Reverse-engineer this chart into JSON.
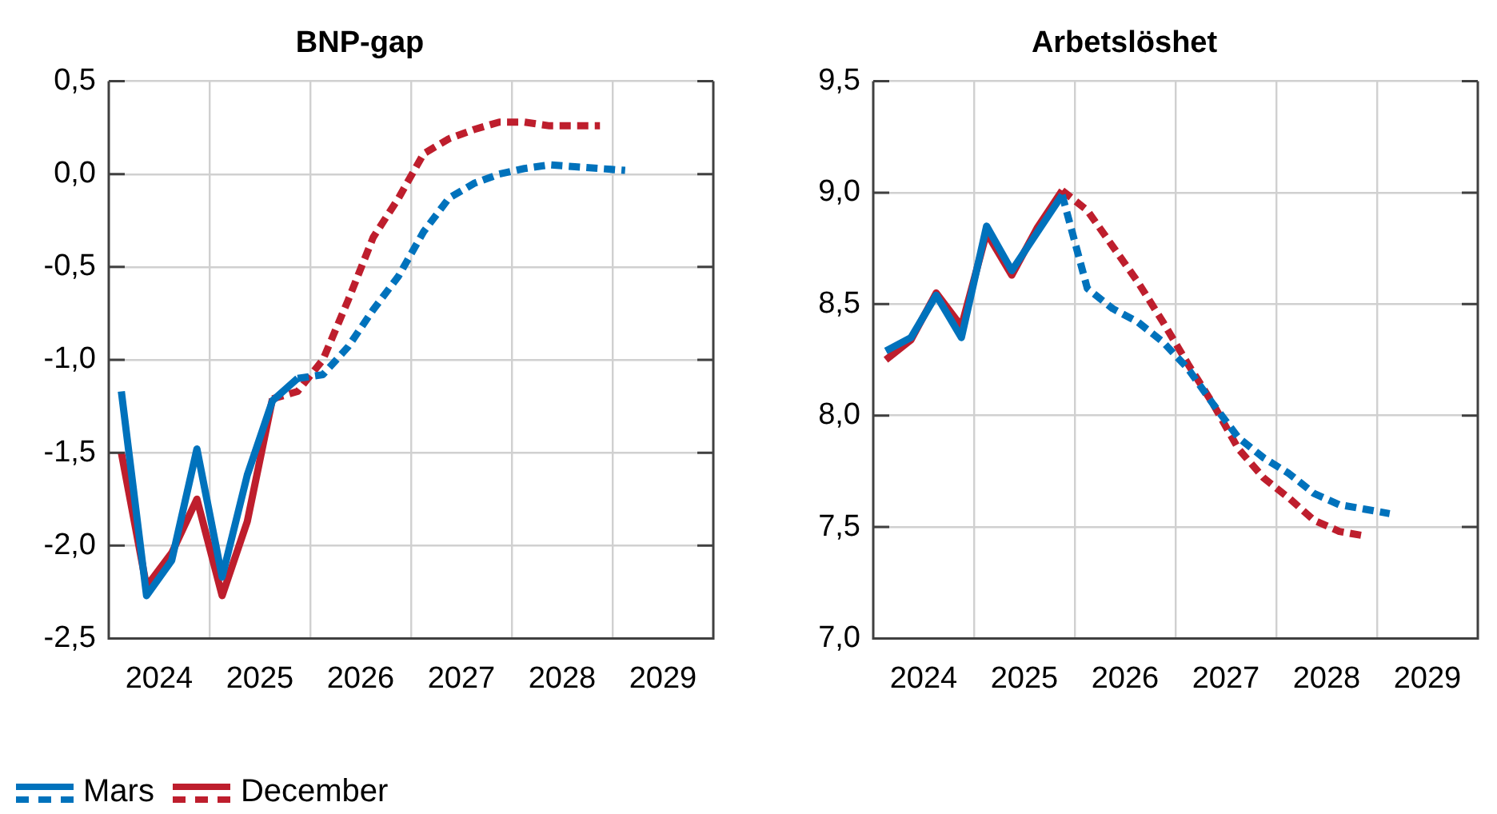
{
  "chart_data": [
    {
      "type": "line",
      "title": "BNP-gap",
      "xlim": [
        2024,
        2030
      ],
      "xticks": [
        {
          "value": 2024.5,
          "label": "2024"
        },
        {
          "value": 2025,
          "label": null
        },
        {
          "value": 2025.5,
          "label": "2025"
        },
        {
          "value": 2026,
          "label": null
        },
        {
          "value": 2026.5,
          "label": "2026"
        },
        {
          "value": 2027,
          "label": null
        },
        {
          "value": 2027.5,
          "label": "2027"
        },
        {
          "value": 2028,
          "label": null
        },
        {
          "value": 2028.5,
          "label": "2028"
        },
        {
          "value": 2029,
          "label": null
        },
        {
          "value": 2029.5,
          "label": "2029"
        }
      ],
      "ylim": [
        -2.5,
        0.5
      ],
      "yticks": [
        {
          "value": -2.5,
          "label": "-2,5"
        },
        {
          "value": -2,
          "label": "-2,0"
        },
        {
          "value": -1.5,
          "label": "-1,5"
        },
        {
          "value": -1,
          "label": "-1,0"
        },
        {
          "value": -0.5,
          "label": "-0,5"
        },
        {
          "value": 0,
          "label": "0,0"
        },
        {
          "value": 0.5,
          "label": "0,5"
        }
      ],
      "grid": true,
      "legend": "bottom left",
      "marker": "none",
      "series": [
        {
          "name": "Mars",
          "color": "#0072bc",
          "line_style": "solid",
          "x": [
            2024.125,
            2024.375,
            2024.625,
            2024.875,
            2025.125,
            2025.375,
            2025.625,
            2025.875
          ],
          "values": [
            -1.17,
            -2.27,
            -2.08,
            -1.48,
            -2.17,
            -1.62,
            -1.22,
            -1.1
          ]
        },
        {
          "color": "#0072bc",
          "line_style": "dashed",
          "x": [
            2025.875,
            2026.125,
            2026.375,
            2026.625,
            2026.875,
            2027.125,
            2027.375,
            2027.625,
            2027.875,
            2028.125,
            2028.375,
            2028.625,
            2028.875,
            2029.125
          ],
          "values": [
            -1.1,
            -1.08,
            -0.93,
            -0.73,
            -0.55,
            -0.31,
            -0.13,
            -0.05,
            0,
            0.03,
            0.05,
            0.04,
            0.03,
            0.02
          ]
        },
        {
          "name": "December",
          "color": "#be1e2d",
          "line_style": "solid",
          "x": [
            2024.125,
            2024.375,
            2024.625,
            2024.875,
            2025.125,
            2025.375,
            2025.625
          ],
          "values": [
            -1.5,
            -2.22,
            -2.04,
            -1.75,
            -2.27,
            -1.87,
            -1.21
          ]
        },
        {
          "color": "#be1e2d",
          "line_style": "dashed",
          "x": [
            2025.625,
            2025.875,
            2026.125,
            2026.375,
            2026.625,
            2026.875,
            2027.125,
            2027.375,
            2027.625,
            2027.875,
            2028.125,
            2028.375,
            2028.625,
            2028.875
          ],
          "values": [
            -1.21,
            -1.17,
            -1,
            -0.68,
            -0.34,
            -0.13,
            0.11,
            0.19,
            0.24,
            0.28,
            0.28,
            0.26,
            0.26,
            0.26
          ]
        }
      ]
    },
    {
      "type": "line",
      "title": "Arbetslöshet",
      "xlim": [
        2024,
        2030
      ],
      "xticks": [
        {
          "value": 2024.5,
          "label": "2024"
        },
        {
          "value": 2025,
          "label": null
        },
        {
          "value": 2025.5,
          "label": "2025"
        },
        {
          "value": 2026,
          "label": null
        },
        {
          "value": 2026.5,
          "label": "2026"
        },
        {
          "value": 2027,
          "label": null
        },
        {
          "value": 2027.5,
          "label": "2027"
        },
        {
          "value": 2028,
          "label": null
        },
        {
          "value": 2028.5,
          "label": "2028"
        },
        {
          "value": 2029,
          "label": null
        },
        {
          "value": 2029.5,
          "label": "2029"
        }
      ],
      "ylim": [
        7,
        9.5
      ],
      "yticks": [
        {
          "value": 7,
          "label": "7,0"
        },
        {
          "value": 7.5,
          "label": "7,5"
        },
        {
          "value": 8,
          "label": "8,0"
        },
        {
          "value": 8.5,
          "label": "8,5"
        },
        {
          "value": 9,
          "label": "9,0"
        },
        {
          "value": 9.5,
          "label": "9,5"
        }
      ],
      "grid": true,
      "marker": "none",
      "series": [
        {
          "color": "#0072bc",
          "line_style": "solid",
          "x": [
            2024.125,
            2024.375,
            2024.625,
            2024.875,
            2025.125,
            2025.375,
            2025.625,
            2025.875
          ],
          "values": [
            8.29,
            8.35,
            8.54,
            8.35,
            8.85,
            8.65,
            8.82,
            8.99
          ]
        },
        {
          "color": "#0072bc",
          "line_style": "dashed",
          "x": [
            2025.875,
            2026.125,
            2026.375,
            2026.625,
            2026.875,
            2027.125,
            2027.375,
            2027.625,
            2027.875,
            2028.125,
            2028.375,
            2028.625,
            2028.875,
            2029.125
          ],
          "values": [
            8.99,
            8.57,
            8.48,
            8.42,
            8.33,
            8.21,
            8.05,
            7.9,
            7.81,
            7.74,
            7.65,
            7.6,
            7.58,
            7.56
          ]
        },
        {
          "color": "#be1e2d",
          "line_style": "solid",
          "x": [
            2024.125,
            2024.375,
            2024.625,
            2024.875,
            2025.125,
            2025.375,
            2025.625,
            2025.875
          ],
          "values": [
            8.25,
            8.34,
            8.55,
            8.4,
            8.82,
            8.63,
            8.84,
            9.01
          ]
        },
        {
          "color": "#be1e2d",
          "line_style": "dashed",
          "x": [
            2025.875,
            2026.125,
            2026.375,
            2026.625,
            2026.875,
            2027.125,
            2027.375,
            2027.625,
            2027.875,
            2028.125,
            2028.375,
            2028.625,
            2028.875
          ],
          "values": [
            9.01,
            8.92,
            8.76,
            8.6,
            8.42,
            8.23,
            8.05,
            7.85,
            7.72,
            7.63,
            7.53,
            7.48,
            7.46
          ]
        }
      ]
    }
  ]
}
